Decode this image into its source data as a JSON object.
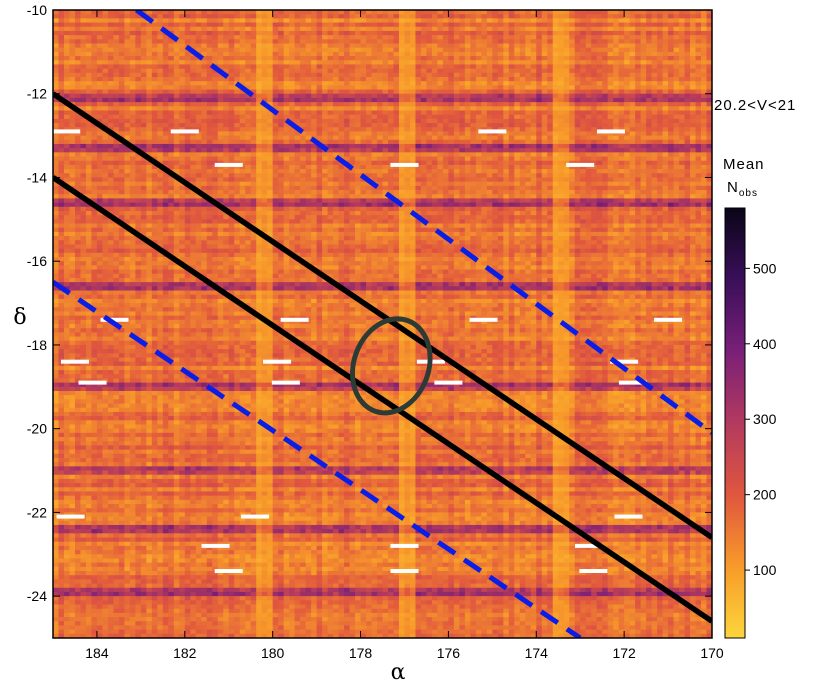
{
  "chart_data": {
    "type": "heatmap",
    "xlabel": "α",
    "ylabel": "δ",
    "xlim": [
      185,
      170
    ],
    "ylim": [
      -25,
      -10
    ],
    "x_ticks": [
      184,
      182,
      180,
      178,
      176,
      174,
      172,
      170
    ],
    "y_ticks": [
      -10,
      -12,
      -14,
      -16,
      -18,
      -20,
      -22,
      -24
    ],
    "annotation": "20.2<V<21",
    "colorbar": {
      "label_main": "Mean",
      "label_sub_base": "N",
      "label_sub_script": "obs",
      "range": [
        10,
        580
      ],
      "ticks": [
        100,
        200,
        300,
        400,
        500
      ],
      "colors": [
        "#fcd63c",
        "#f89a2a",
        "#e0563f",
        "#b33a5e",
        "#7a1f78",
        "#3a0f5a",
        "#0a0518"
      ]
    },
    "heatmap": {
      "background_value": 160,
      "noise_amplitude": 55,
      "dark_rows_dec": [
        -12.1,
        -13.3,
        -14.6,
        -16.6,
        -19.0,
        -21.0,
        -22.4,
        -23.9
      ],
      "dark_row_value": 340,
      "bright_columns_ra": [
        180.2,
        176.9,
        173.4
      ],
      "bright_column_value": 60,
      "white_streaks": [
        {
          "ra": 184.7,
          "dec": -12.9
        },
        {
          "ra": 182.0,
          "dec": -12.9
        },
        {
          "ra": 175.0,
          "dec": -12.9
        },
        {
          "ra": 172.3,
          "dec": -12.9
        },
        {
          "ra": 181.0,
          "dec": -13.7
        },
        {
          "ra": 177.0,
          "dec": -13.7
        },
        {
          "ra": 173.0,
          "dec": -13.7
        },
        {
          "ra": 183.6,
          "dec": -17.4
        },
        {
          "ra": 179.5,
          "dec": -17.4
        },
        {
          "ra": 175.2,
          "dec": -17.4
        },
        {
          "ra": 171.0,
          "dec": -17.4
        },
        {
          "ra": 184.5,
          "dec": -18.4
        },
        {
          "ra": 179.9,
          "dec": -18.4
        },
        {
          "ra": 176.4,
          "dec": -18.4
        },
        {
          "ra": 172.0,
          "dec": -18.4
        },
        {
          "ra": 184.1,
          "dec": -18.9
        },
        {
          "ra": 179.7,
          "dec": -18.9
        },
        {
          "ra": 176.0,
          "dec": -18.9
        },
        {
          "ra": 171.8,
          "dec": -18.9
        },
        {
          "ra": 184.6,
          "dec": -22.1
        },
        {
          "ra": 180.4,
          "dec": -22.1
        },
        {
          "ra": 171.9,
          "dec": -22.1
        },
        {
          "ra": 181.3,
          "dec": -22.8
        },
        {
          "ra": 177.0,
          "dec": -22.8
        },
        {
          "ra": 172.8,
          "dec": -22.8
        },
        {
          "ra": 181.0,
          "dec": -23.4
        },
        {
          "ra": 177.0,
          "dec": -23.4
        },
        {
          "ra": 172.7,
          "dec": -23.4
        }
      ]
    },
    "lines": [
      {
        "style": "solid",
        "color": "#000000",
        "from": [
          185,
          -12.0
        ],
        "to": [
          170,
          -22.6
        ]
      },
      {
        "style": "solid",
        "color": "#000000",
        "from": [
          185,
          -14.0
        ],
        "to": [
          170,
          -24.6
        ]
      },
      {
        "style": "dashed",
        "color": "#0a1ee6",
        "from": [
          183.1,
          -10.0
        ],
        "to": [
          170,
          -20.1
        ]
      },
      {
        "style": "dashed",
        "color": "#0a1ee6",
        "from": [
          185,
          -16.5
        ],
        "to": [
          173.0,
          -25.0
        ]
      }
    ],
    "ellipse": {
      "center": [
        177.3,
        -18.5
      ],
      "ra_radius": 0.85,
      "dec_radius": 1.15,
      "color": "#2e3a34"
    }
  }
}
